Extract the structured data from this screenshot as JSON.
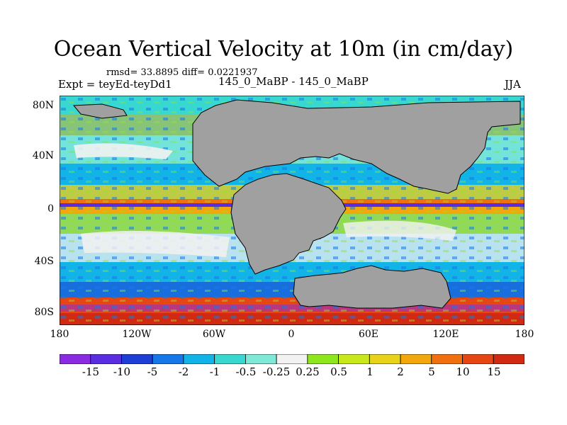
{
  "header": {
    "title": "Ocean Vertical Velocity at 10m (in cm/day)",
    "stats": "rmsd= 33.8895 diff= 0.0221937",
    "expt": "Expt = teyEd-teyDd1",
    "subtitle": "145_0_MaBP - 145_0_MaBP",
    "season": "JJA"
  },
  "map": {
    "lat_labels": [
      "80N",
      "40N",
      "0",
      "40S",
      "80S"
    ],
    "lon_labels": [
      "180",
      "120W",
      "60W",
      "0",
      "60E",
      "120E",
      "180"
    ]
  },
  "colorbar": {
    "labels": [
      "-15",
      "-10",
      "-5",
      "-2",
      "-1",
      "-0.5",
      "-0.25",
      "0.25",
      "0.5",
      "1",
      "2",
      "5",
      "10",
      "15"
    ],
    "colors": [
      "#8a2be2",
      "#5a2ee0",
      "#1e3fd6",
      "#1678e6",
      "#12b4e8",
      "#38d8d0",
      "#7fe8d6",
      "#f2f2f2",
      "#8ee61e",
      "#c8e81c",
      "#e8d21a",
      "#f2a80c",
      "#f07010",
      "#e64614",
      "#d02a12"
    ]
  }
}
